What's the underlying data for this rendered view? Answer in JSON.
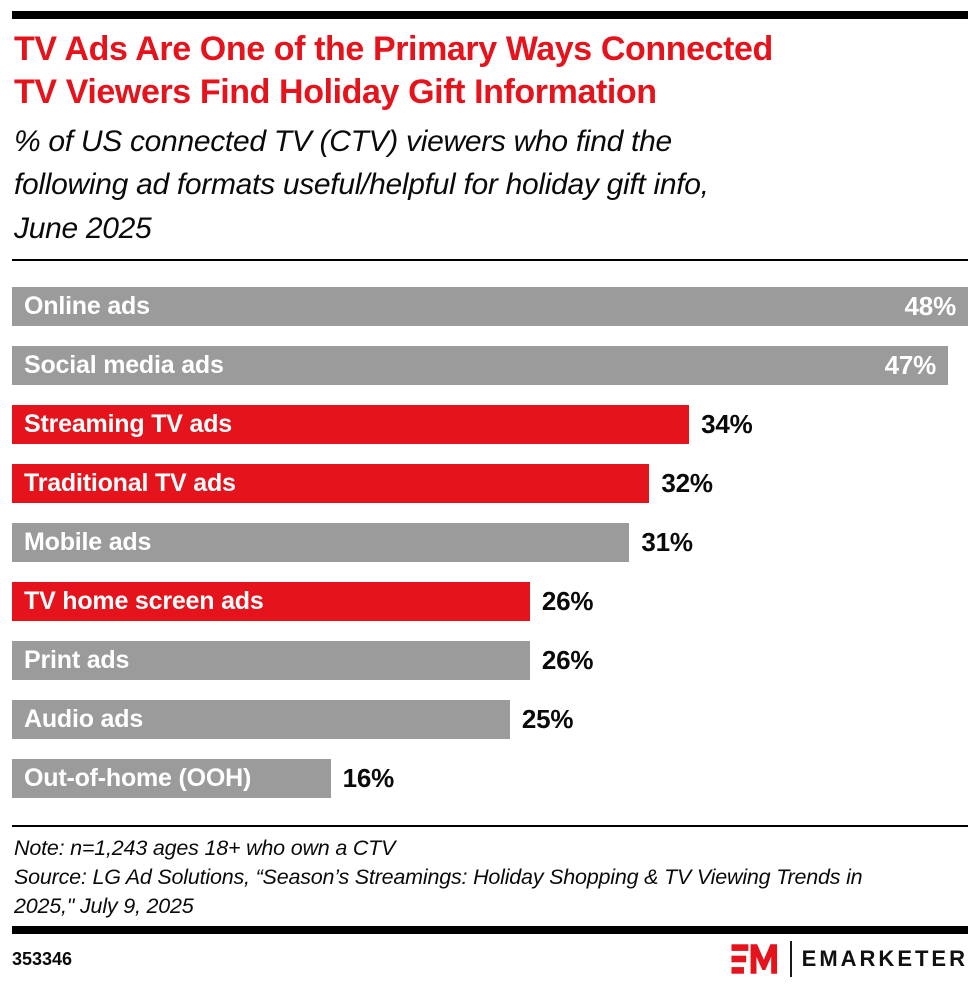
{
  "header": {
    "title": "TV Ads Are One of the Primary Ways Connected TV Viewers Find Holiday Gift Information",
    "title_lines": [
      "TV Ads Are One of the Primary Ways Connected",
      "TV Viewers Find Holiday Gift Information"
    ],
    "subtitle": "% of US connected TV (CTV) viewers who find the following ad formats useful/helpful for holiday gift info, June 2025",
    "subtitle_lines": [
      "% of US connected TV (CTV) viewers who find the",
      "following ad formats useful/helpful for holiday gift info,",
      "June 2025"
    ]
  },
  "chart_data": {
    "type": "bar",
    "orientation": "horizontal",
    "title": "TV Ads Are One of the Primary Ways Connected TV Viewers Find Holiday Gift Information",
    "unit": "%",
    "xlim": [
      0,
      48
    ],
    "grid": false,
    "categories": [
      "Online ads",
      "Social media ads",
      "Streaming TV ads",
      "Traditional TV ads",
      "Mobile ads",
      "TV home screen ads",
      "Print ads",
      "Audio ads",
      "Out-of-home (OOH)"
    ],
    "values": [
      48,
      47,
      34,
      32,
      31,
      26,
      26,
      25,
      16
    ],
    "value_labels": [
      "48%",
      "47%",
      "34%",
      "32%",
      "31%",
      "26%",
      "26%",
      "25%",
      "16%"
    ],
    "bar_color_keys": [
      "gray",
      "gray",
      "red",
      "red",
      "gray",
      "red",
      "gray",
      "gray",
      "gray"
    ],
    "colors": {
      "red": "#e5131b",
      "gray": "#9b9b9b"
    },
    "value_label_inside": [
      true,
      true,
      false,
      false,
      false,
      false,
      false,
      false,
      false
    ]
  },
  "footer": {
    "note": "Note: n=1,243 ages 18+ who own a CTV",
    "source": "Source: LG Ad Solutions, “Season’s Streamings: Holiday Shopping & TV Viewing Trends in 2025,\" July 9, 2025",
    "source_lines": [
      "Source: LG Ad Solutions, “Season’s Streamings: Holiday Shopping & TV Viewing Trends in",
      "2025,\" July 9, 2025"
    ],
    "chart_id": "353346",
    "brand": "EMARKETER"
  }
}
